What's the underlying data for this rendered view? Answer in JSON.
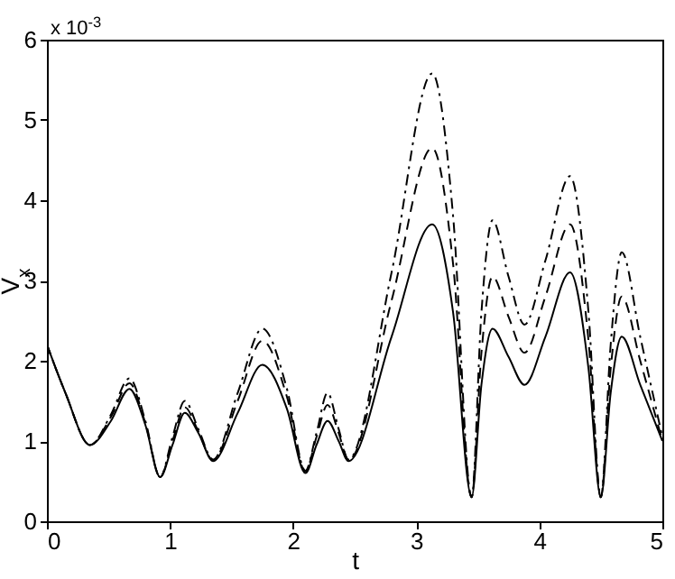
{
  "chart_data": {
    "type": "line",
    "xlabel": "t",
    "ylabel": "V$_{x}$",
    "annotations": [
      "x 10$^{-3}$"
    ],
    "xlim": [
      0,
      5
    ],
    "xticks": [
      0,
      1,
      2,
      3,
      4,
      5
    ],
    "ylim": [
      0,
      6
    ],
    "yticks": [
      0,
      1,
      2,
      3,
      4,
      5,
      6
    ],
    "grid": false,
    "x": [
      0,
      0.15,
      0.35,
      0.52,
      0.67,
      0.8,
      0.92,
      1.02,
      1.12,
      1.23,
      1.35,
      1.55,
      1.75,
      1.95,
      2.1,
      2.19,
      2.28,
      2.37,
      2.45,
      2.8,
      3.13,
      3.3,
      3.45,
      3.53,
      3.62,
      3.75,
      3.88,
      4.05,
      4.25,
      4.4,
      4.5,
      4.58,
      4.67,
      4.82,
      5
    ],
    "series": [
      {
        "color": "#000000",
        "line_style": "solid",
        "values": [
          2.2,
          1.6,
          0.95,
          1.25,
          1.65,
          1.2,
          0.55,
          0.95,
          1.35,
          1.1,
          0.75,
          1.35,
          1.95,
          1.4,
          0.6,
          0.95,
          1.25,
          1.0,
          0.75,
          2.3,
          3.7,
          2.6,
          0.3,
          1.7,
          2.4,
          2.05,
          1.7,
          2.3,
          3.1,
          1.9,
          0.3,
          1.6,
          2.3,
          1.7,
          1.0
        ]
      },
      {
        "color": "#000000",
        "line_style": "dashed",
        "values": [
          2.2,
          1.6,
          0.95,
          1.3,
          1.72,
          1.22,
          0.55,
          1.0,
          1.42,
          1.12,
          0.76,
          1.5,
          2.25,
          1.55,
          0.62,
          1.05,
          1.45,
          1.1,
          0.76,
          2.75,
          4.65,
          3.2,
          0.3,
          2.1,
          3.05,
          2.55,
          2.1,
          2.8,
          3.7,
          2.25,
          0.3,
          1.9,
          2.8,
          2.0,
          1.0
        ]
      },
      {
        "color": "#000000",
        "line_style": "dashdot",
        "values": [
          2.2,
          1.6,
          0.95,
          1.33,
          1.78,
          1.25,
          0.55,
          1.05,
          1.5,
          1.15,
          0.77,
          1.6,
          2.4,
          1.65,
          0.63,
          1.1,
          1.6,
          1.15,
          0.77,
          3.1,
          5.58,
          3.8,
          0.3,
          2.6,
          3.75,
          3.05,
          2.45,
          3.25,
          4.3,
          2.6,
          0.3,
          2.2,
          3.35,
          2.3,
          1.05
        ]
      }
    ]
  }
}
